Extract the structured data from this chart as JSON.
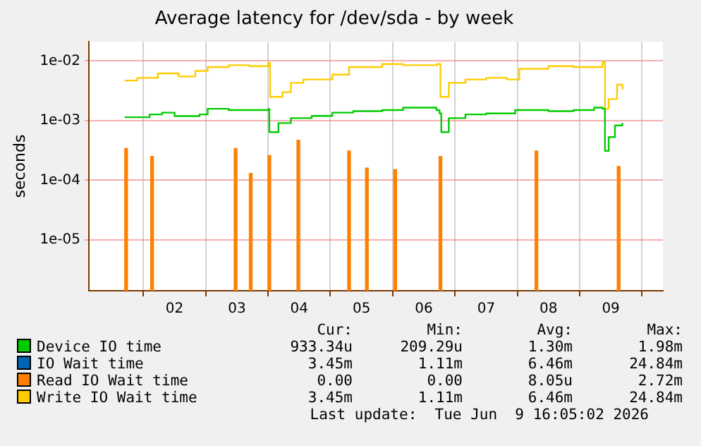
{
  "chart_data": {
    "type": "step",
    "title": "Average latency for /dev/sda - by week",
    "ylabel": "seconds",
    "log": "y",
    "ylim": [
      1.4e-06,
      0.021
    ],
    "yticks": [
      {
        "value": 1e-05,
        "label": "1e-05"
      },
      {
        "value": 0.0001,
        "label": "1e-04"
      },
      {
        "value": 0.001,
        "label": "1e-03"
      },
      {
        "value": 0.01,
        "label": "1e-02"
      }
    ],
    "xlim": [
      "2026-06-01T16:50",
      "2026-06-09T18:15"
    ],
    "xticks": [
      {
        "value": "2026-06-02T12:00",
        "label": "02"
      },
      {
        "value": "2026-06-03T12:00",
        "label": "03"
      },
      {
        "value": "2026-06-04T12:00",
        "label": "04"
      },
      {
        "value": "2026-06-05T12:00",
        "label": "05"
      },
      {
        "value": "2026-06-06T12:00",
        "label": "06"
      },
      {
        "value": "2026-06-07T12:00",
        "label": "07"
      },
      {
        "value": "2026-06-08T12:00",
        "label": "08"
      },
      {
        "value": "2026-06-09T12:00",
        "label": "09"
      }
    ],
    "grid": true,
    "legend": "bottom",
    "marker": "none",
    "line_style": "solid",
    "series": [
      {
        "name": "Device IO time",
        "color": "#00cc00",
        "x": [
          "2026-06-01T16:50",
          "2026-06-02T02:24",
          "2026-06-02T07:12",
          "2026-06-02T12:00",
          "2026-06-02T21:36",
          "2026-06-03T00:45",
          "2026-06-03T08:50",
          "2026-06-03T16:48",
          "2026-06-04T00:09",
          "2026-06-04T00:29",
          "2026-06-04T04:00",
          "2026-06-04T08:47",
          "2026-06-04T16:48",
          "2026-06-05T00:45",
          "2026-06-05T08:47",
          "2026-06-05T19:58",
          "2026-06-06T04:00",
          "2026-06-06T16:48",
          "2026-06-06T18:03",
          "2026-06-06T18:43",
          "2026-06-06T21:36",
          "2026-06-07T04:00",
          "2026-06-07T12:00",
          "2026-06-07T23:11",
          "2026-06-08T12:00",
          "2026-06-08T21:36",
          "2026-06-09T05:34",
          "2026-06-09T08:47",
          "2026-06-09T09:45",
          "2026-06-09T11:11",
          "2026-06-09T13:35",
          "2026-06-09T16:28"
        ],
        "values": [
          0.00114,
          0.00127,
          0.00136,
          0.00119,
          0.00127,
          0.00158,
          0.0015,
          0.0015,
          0.00158,
          0.00064,
          0.00091,
          0.0011,
          0.0012,
          0.00136,
          0.00144,
          0.0015,
          0.00165,
          0.0015,
          0.00132,
          0.00064,
          0.0011,
          0.00127,
          0.00132,
          0.0015,
          0.00144,
          0.0015,
          0.00165,
          0.00158,
          0.00031,
          0.00053,
          0.00083,
          0.00091
        ]
      },
      {
        "name": "IO Wait time",
        "color": "#0066b3"
      },
      {
        "name": "Read IO Wait time",
        "color": "#ff8000",
        "type": "bar",
        "x": [
          "2026-06-01T17:20",
          "2026-06-02T03:20",
          "2026-06-03T11:30",
          "2026-06-03T17:20",
          "2026-06-04T00:30",
          "2026-06-04T11:40",
          "2026-06-05T07:12",
          "2026-06-05T14:04",
          "2026-06-06T00:58",
          "2026-06-06T18:23",
          "2026-06-08T07:21",
          "2026-06-09T15:01"
        ],
        "values": [
          0.00034,
          0.00025,
          0.00034,
          0.00013,
          0.00026,
          0.00047,
          0.00031,
          0.00016,
          0.00015,
          0.00025,
          0.00031,
          0.00017
        ]
      },
      {
        "name": "Write IO Wait time",
        "color": "#ffcc00",
        "x": [
          "2026-06-01T16:50",
          "2026-06-01T21:36",
          "2026-06-02T05:34",
          "2026-06-02T13:35",
          "2026-06-02T19:58",
          "2026-06-03T00:45",
          "2026-06-03T08:50",
          "2026-06-03T16:48",
          "2026-06-04T00:09",
          "2026-06-04T00:46",
          "2026-06-04T05:34",
          "2026-06-04T08:47",
          "2026-06-04T13:35",
          "2026-06-05T00:45",
          "2026-06-05T07:12",
          "2026-06-05T19:58",
          "2026-06-06T04:00",
          "2026-06-06T17:05",
          "2026-06-06T18:23",
          "2026-06-06T21:36",
          "2026-06-07T04:00",
          "2026-06-07T12:00",
          "2026-06-07T19:58",
          "2026-06-08T00:46",
          "2026-06-08T12:00",
          "2026-06-08T21:36",
          "2026-06-09T08:47",
          "2026-06-09T09:45",
          "2026-06-09T11:11",
          "2026-06-09T14:24",
          "2026-06-09T16:28"
        ],
        "values": [
          0.0047,
          0.0052,
          0.0062,
          0.0055,
          0.0068,
          0.0079,
          0.0085,
          0.0082,
          0.0093,
          0.0025,
          0.003,
          0.0043,
          0.0049,
          0.0059,
          0.0079,
          0.0089,
          0.0085,
          0.0089,
          0.0025,
          0.0043,
          0.0049,
          0.0052,
          0.0049,
          0.0074,
          0.0082,
          0.0079,
          0.0095,
          0.00158,
          0.0023,
          0.004,
          0.0033
        ]
      }
    ],
    "annotations": [
      "Cur:",
      "Min:",
      "Avg:",
      "Max:",
      "933.34u",
      "209.29u",
      "1.30m",
      "1.98m",
      "3.45m",
      "1.11m",
      "6.46m",
      "24.84m",
      "0.00",
      "0.00",
      "8.05u",
      "2.72m",
      "3.45m",
      "1.11m",
      "6.46m",
      "24.84m",
      "Last update:  Tue Jun  9 16:05:02 2026"
    ]
  }
}
